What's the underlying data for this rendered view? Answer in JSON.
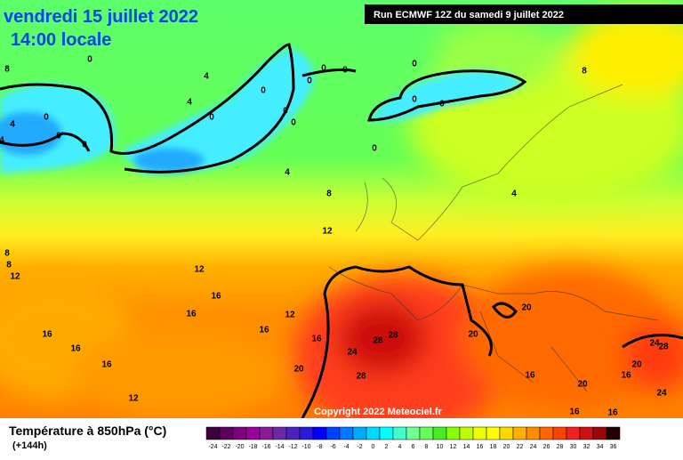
{
  "header": {
    "date": "vendredi 15 juillet 2022",
    "time": "14:00 locale",
    "run": "Run ECMWF 12Z du samedi 9 juillet 2022"
  },
  "copyright": "Copyright 2022 Meteociel.fr",
  "legend": {
    "title": "Température à 850hPa (°C)",
    "lead": "(+144h)",
    "labels": [
      -24,
      -22,
      -20,
      -18,
      -16,
      -14,
      -12,
      -10,
      -8,
      -6,
      -4,
      -2,
      0,
      2,
      4,
      6,
      8,
      10,
      12,
      14,
      16,
      18,
      20,
      22,
      24,
      26,
      28,
      30,
      32,
      34,
      36
    ],
    "colors": [
      "#3a003a",
      "#5c005c",
      "#7d007d",
      "#9a009a",
      "#8a1a96",
      "#6a2aa8",
      "#4a22c0",
      "#2a1ad8",
      "#0000ff",
      "#0040ff",
      "#0078ff",
      "#00aaff",
      "#00d8ff",
      "#00ffff",
      "#40ffcc",
      "#70ff90",
      "#66ff55",
      "#44ee22",
      "#88ff00",
      "#bbff00",
      "#eeff00",
      "#ffff00",
      "#ffd800",
      "#ffb000",
      "#ff8c00",
      "#ff6600",
      "#ff4400",
      "#ee2222",
      "#cc1111",
      "#990808",
      "#220000"
    ]
  },
  "contour_labels": [
    8,
    0,
    4,
    0,
    0,
    0,
    0,
    0,
    8,
    4,
    0,
    0,
    0,
    0,
    0,
    4,
    0,
    0,
    0,
    4,
    0,
    4,
    8,
    4,
    12,
    8,
    8,
    12,
    12,
    16,
    16,
    12,
    16,
    16,
    16,
    16,
    16,
    12,
    20,
    24,
    28,
    28,
    28,
    20,
    20,
    16,
    20,
    20,
    24,
    28,
    16,
    24,
    16,
    16
  ]
}
